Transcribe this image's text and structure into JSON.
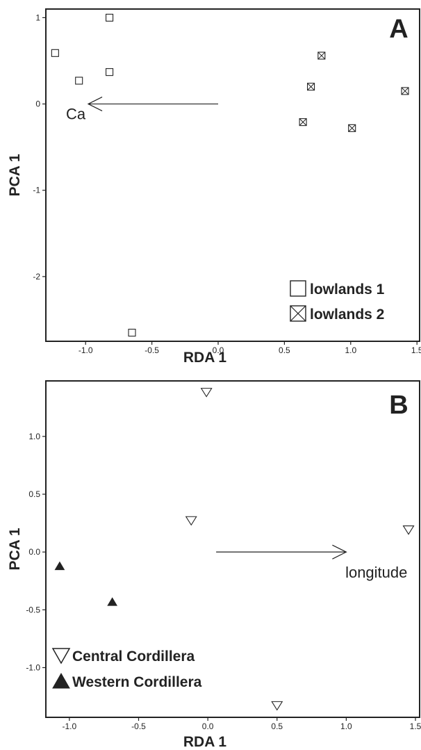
{
  "chart_data": [
    {
      "type": "scatter",
      "panel_label": "A",
      "xlabel": "RDA 1",
      "ylabel": "PCA 1",
      "xlim": [
        -1.3,
        1.52
      ],
      "ylim": [
        -2.75,
        1.1
      ],
      "xticks": [
        -1.0,
        -0.5,
        0.0,
        0.5,
        1.0,
        1.5
      ],
      "xtick_labels": [
        "-1.0",
        "-0.5",
        "0.0",
        "0.5",
        "1.0",
        "1.5"
      ],
      "yticks": [
        1,
        0,
        -1,
        -2
      ],
      "ytick_labels": [
        "1",
        "0",
        "-1",
        "-2"
      ],
      "legend_position": "bottom-right",
      "series": [
        {
          "name": "lowlands 1",
          "marker": "square-open",
          "points": [
            {
              "x": -1.23,
              "y": 0.59
            },
            {
              "x": -1.05,
              "y": 0.27
            },
            {
              "x": -0.82,
              "y": 1.0
            },
            {
              "x": -0.82,
              "y": 0.37
            },
            {
              "x": -0.65,
              "y": -2.65
            }
          ]
        },
        {
          "name": "lowlands 2",
          "marker": "square-crossed",
          "points": [
            {
              "x": 0.78,
              "y": 0.56
            },
            {
              "x": 0.7,
              "y": 0.2
            },
            {
              "x": 0.64,
              "y": -0.21
            },
            {
              "x": 1.01,
              "y": -0.28
            },
            {
              "x": 1.41,
              "y": 0.15
            }
          ]
        }
      ],
      "vector": {
        "label": "Ca",
        "from": [
          0.0,
          0.0
        ],
        "to": [
          -0.98,
          0.0
        ]
      }
    },
    {
      "type": "scatter",
      "panel_label": "B",
      "xlabel": "RDA 1",
      "ylabel": "PCA 1",
      "xlim": [
        -1.17,
        1.53
      ],
      "ylim": [
        -1.43,
        1.48
      ],
      "xticks": [
        -1.0,
        -0.5,
        0.0,
        0.5,
        1.0,
        1.5
      ],
      "xtick_labels": [
        "-1.0",
        "-0.5",
        "0.0",
        "0.5",
        "1.0",
        "1.5"
      ],
      "yticks": [
        1.0,
        0.5,
        0.0,
        -0.5,
        -1.0
      ],
      "ytick_labels": [
        "1.0",
        "0.5",
        "0.0",
        "-0.5",
        "-1.0"
      ],
      "legend_position": "bottom-left",
      "series": [
        {
          "name": "Central Cordillera",
          "marker": "triangle-down-open",
          "points": [
            {
              "x": -0.01,
              "y": 1.38
            },
            {
              "x": -0.12,
              "y": 0.27
            },
            {
              "x": 1.45,
              "y": 0.19
            },
            {
              "x": 0.5,
              "y": -1.33
            }
          ]
        },
        {
          "name": "Western Cordillera",
          "marker": "triangle-up-filled",
          "points": [
            {
              "x": -1.07,
              "y": -0.12
            },
            {
              "x": -0.69,
              "y": -0.43
            }
          ]
        }
      ],
      "vector": {
        "label": "longitude",
        "from": [
          0.06,
          0.0
        ],
        "to": [
          1.0,
          0.0
        ]
      }
    }
  ]
}
